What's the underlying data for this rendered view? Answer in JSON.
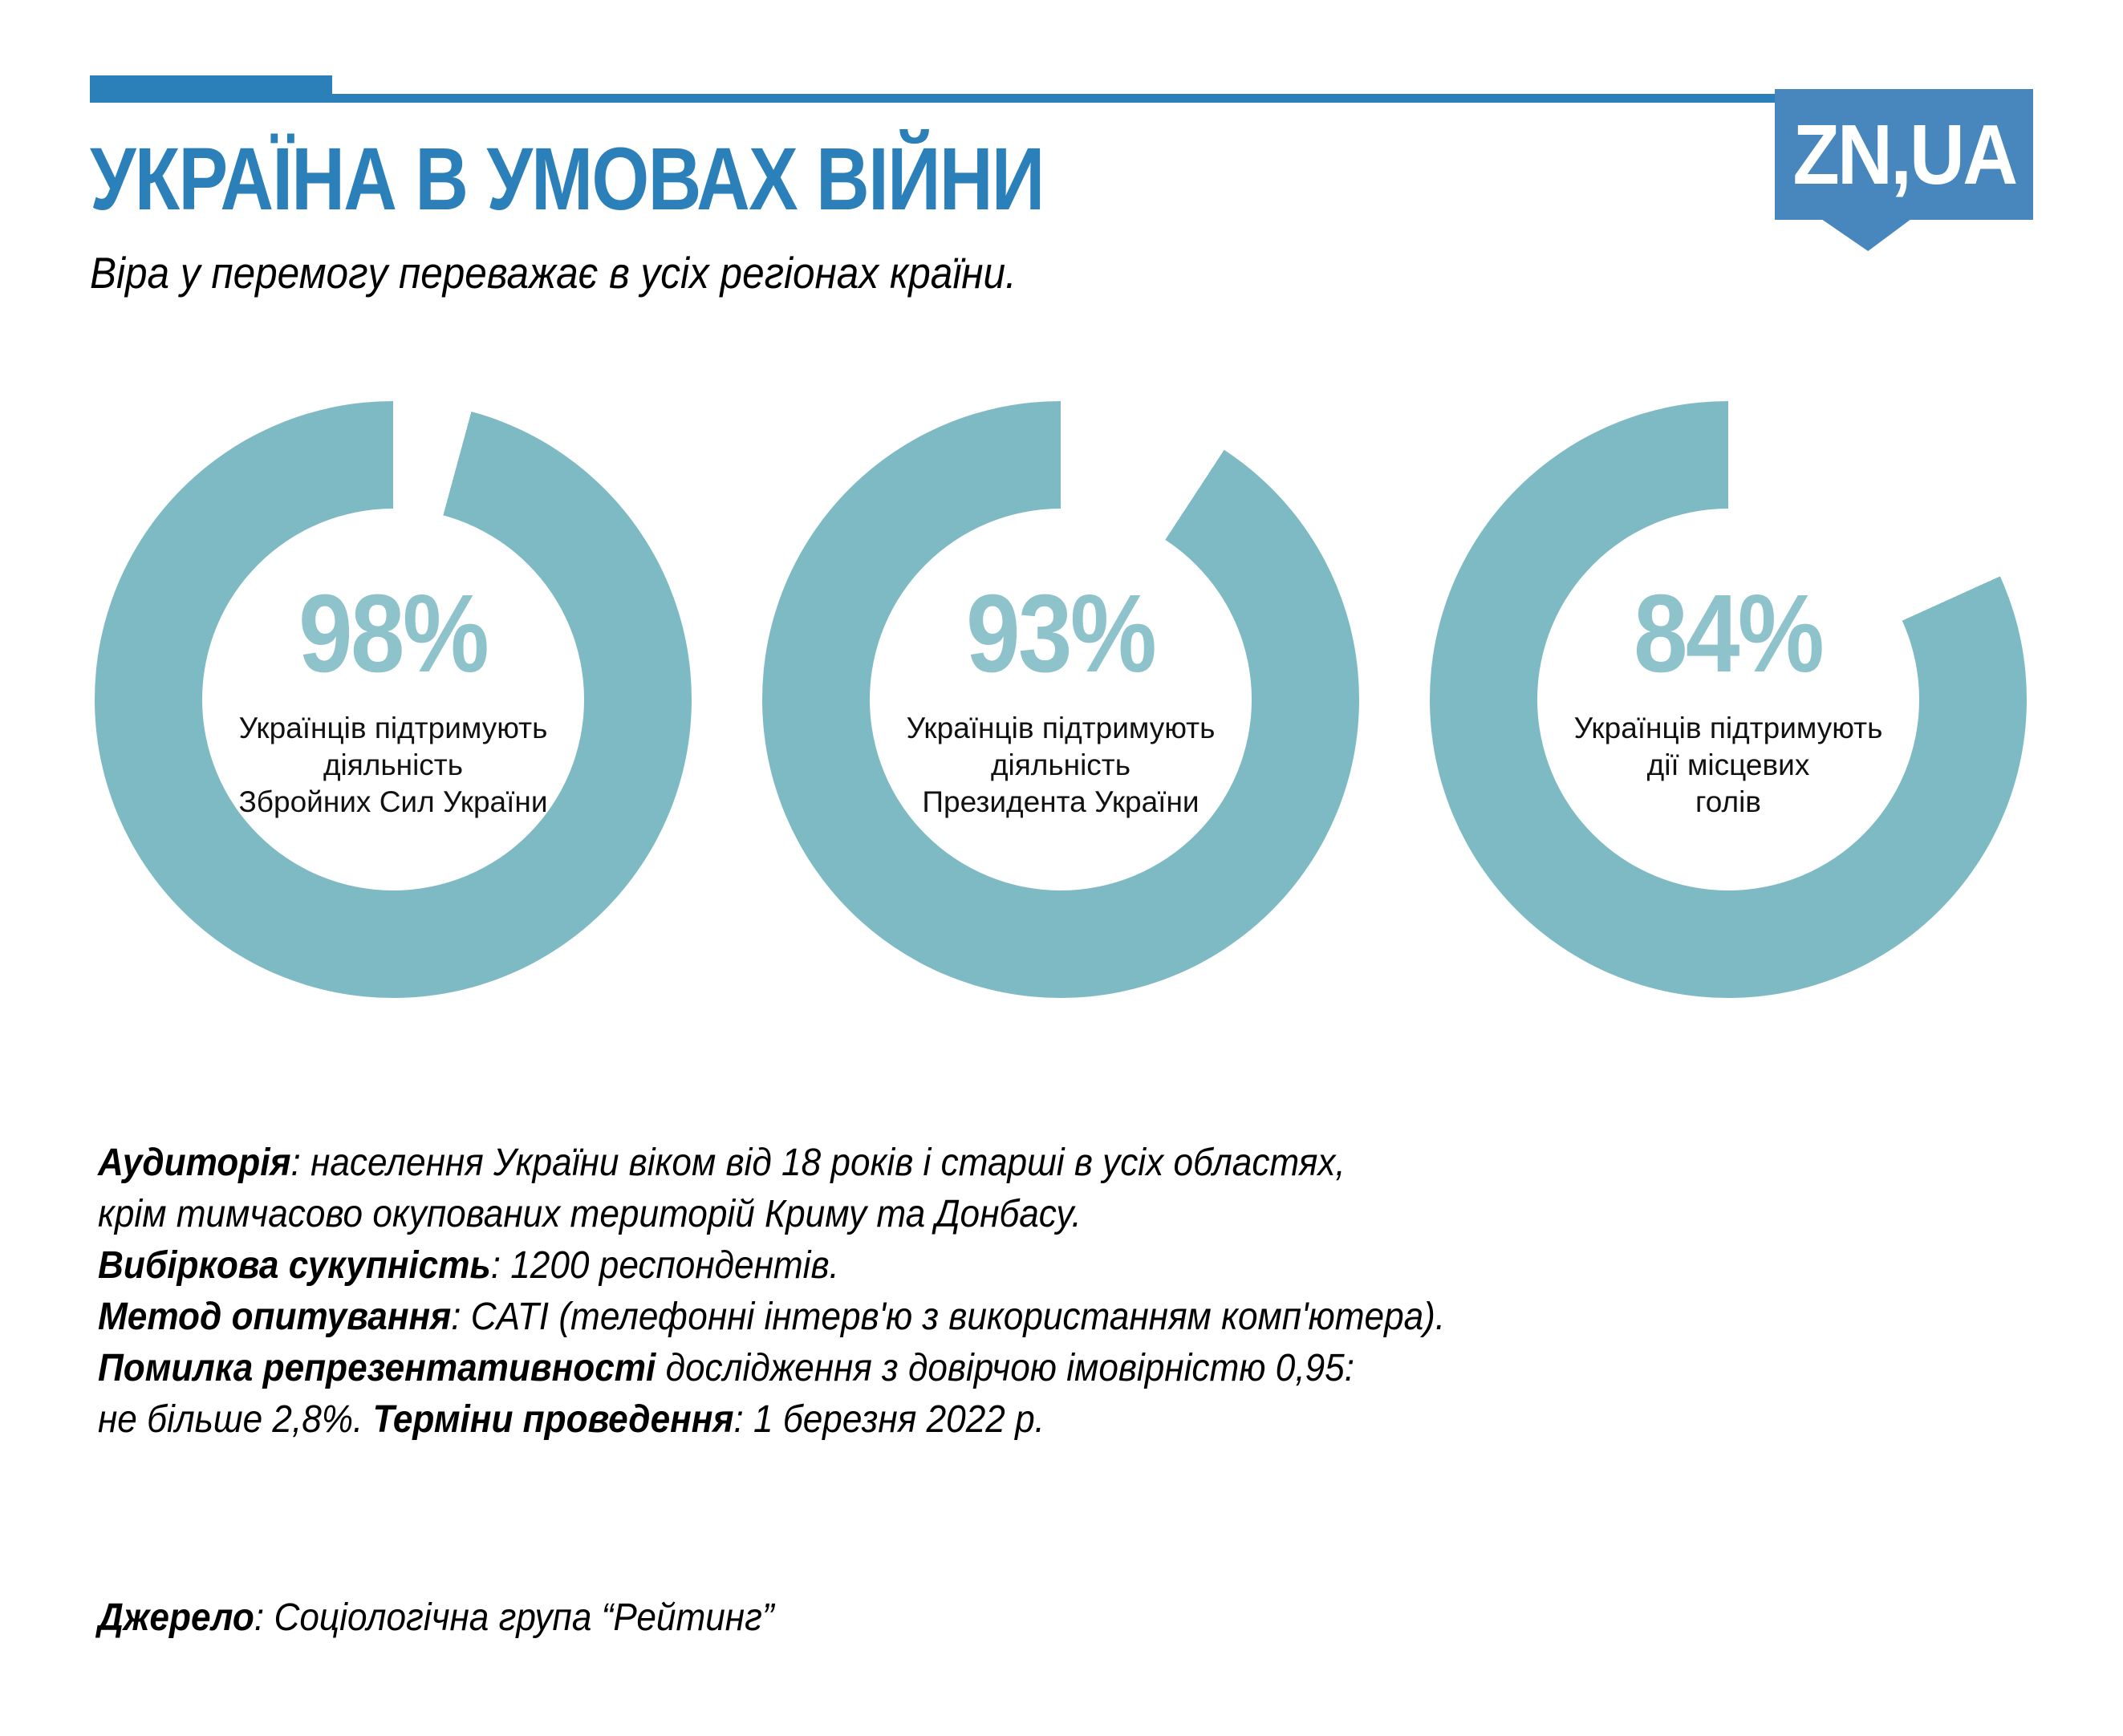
{
  "header": {
    "title": "УКРАЇНА В УМОВАХ ВІЙНИ",
    "subtitle": "Віра у перемогу переважає в усіх регіонах країни.",
    "accent_color": "#2b80b9",
    "logo": {
      "text": "ZN,UA",
      "bg_color": "#4787be",
      "text_color": "#ffffff"
    }
  },
  "chart_data": [
    {
      "type": "pie",
      "style": "donut",
      "value": 98,
      "values": [
        98,
        2
      ],
      "unit": "%",
      "value_display": "98%",
      "caption": "Українців підтримують діяльність Збройних Сил України",
      "caption_lines": [
        "Українців підтримують",
        "діяльність",
        "Збройних Сил України"
      ],
      "ring_color": "#7ebac4",
      "value_color": "#8fc3cc",
      "gap_start_deg": 0,
      "legend": "none"
    },
    {
      "type": "pie",
      "style": "donut",
      "value": 93,
      "values": [
        93,
        7
      ],
      "unit": "%",
      "value_display": "93%",
      "caption": "Українців підтримують діяльність Президента України",
      "caption_lines": [
        "Українців підтримують",
        "діяльність",
        "Президента України"
      ],
      "ring_color": "#7ebac4",
      "value_color": "#8fc3cc",
      "gap_start_deg": 0,
      "legend": "none"
    },
    {
      "type": "pie",
      "style": "donut",
      "value": 84,
      "values": [
        84,
        16
      ],
      "unit": "%",
      "value_display": "84%",
      "caption": "Українців підтримують дії місцевих голів",
      "caption_lines": [
        "Українців підтримують",
        "дії місцевих",
        "голів"
      ],
      "ring_color": "#7ebac4",
      "value_color": "#8fc3cc",
      "gap_start_deg": 0,
      "legend": "none"
    }
  ],
  "methodology": {
    "lines": [
      [
        {
          "bold": true,
          "text": "Аудиторія"
        },
        {
          "bold": false,
          "text": ": населення України віком від 18 років і старші в усіх областях,"
        }
      ],
      [
        {
          "bold": false,
          "text": "крім тимчасово окупованих територій Криму та Донбасу."
        }
      ],
      [
        {
          "bold": true,
          "text": "Вибіркова сукупність"
        },
        {
          "bold": false,
          "text": ": 1200 респондентів."
        }
      ],
      [
        {
          "bold": true,
          "text": "Метод опитування"
        },
        {
          "bold": false,
          "text": ": CATI (телефонні інтерв'ю з використанням комп'ютера)."
        }
      ],
      [
        {
          "bold": true,
          "text": "Помилка репрезентативності"
        },
        {
          "bold": false,
          "text": " дослідження з довірчою імовірністю 0,95:"
        }
      ],
      [
        {
          "bold": false,
          "text": "не більше 2,8%. "
        },
        {
          "bold": true,
          "text": "Терміни проведення"
        },
        {
          "bold": false,
          "text": ": 1 березня 2022 р."
        }
      ]
    ],
    "source": [
      {
        "bold": true,
        "text": "Джерело"
      },
      {
        "bold": false,
        "text": ": Соціологічна група “Рейтинг”"
      }
    ]
  }
}
